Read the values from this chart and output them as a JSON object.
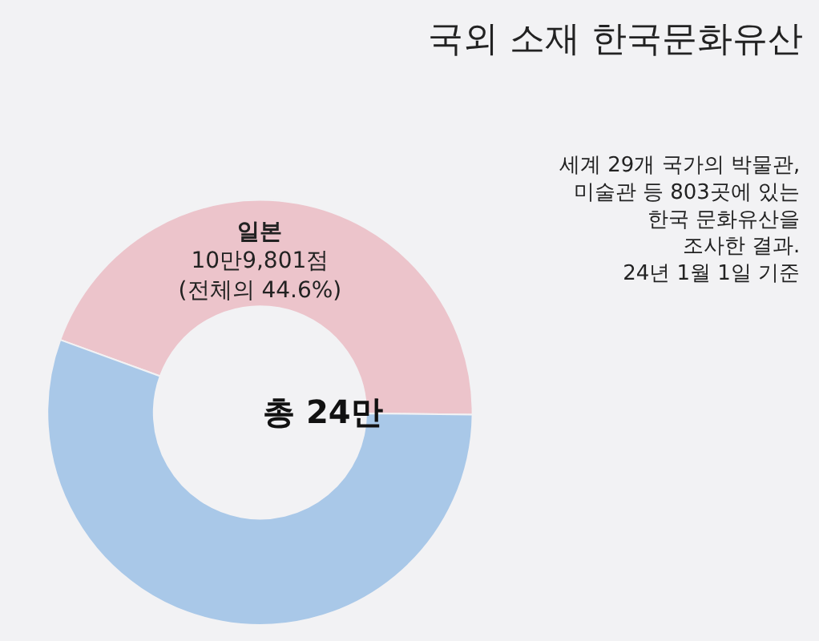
{
  "chart_data": {
    "type": "donut",
    "title": "국외 소재 한국문화유산",
    "subtitle": "세계 29개 국가의 박물관,\n미술관 등 803곳에 있는\n한국 문화유산을\n조사한 결과.\n24년 1월 1일 기준",
    "categories": [
      "일본",
      null
    ],
    "values": [
      44.6,
      55.4
    ],
    "colors": [
      "#ecc4cb",
      "#a9c8e8"
    ],
    "value_labels": [
      "10만9,801점\n(전체의 44.6%)",
      null
    ],
    "annotations": [
      "총 24만"
    ],
    "legend": false
  }
}
